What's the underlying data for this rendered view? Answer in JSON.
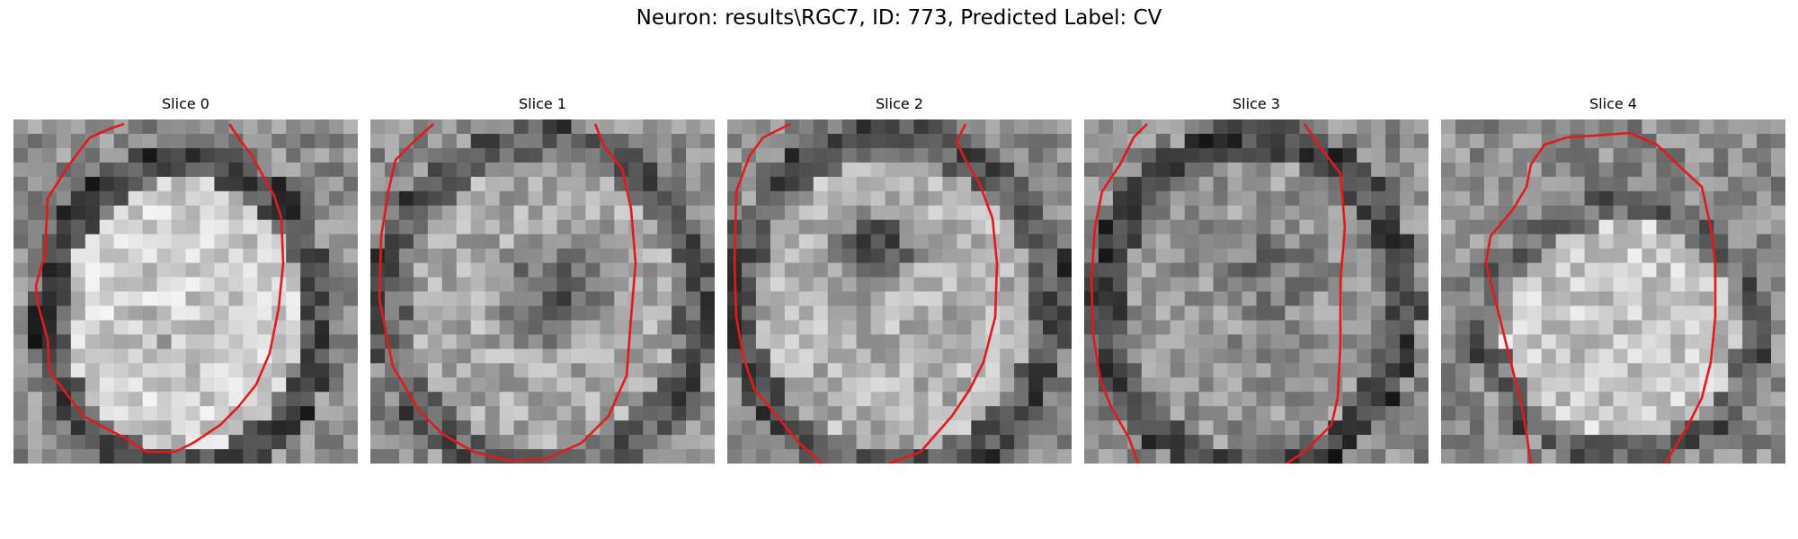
{
  "figure": {
    "title": "Neuron: results\\RGC7, ID: 773, Predicted Label: CV"
  },
  "panels": [
    {
      "title": "Slice 0"
    },
    {
      "title": "Slice 1"
    },
    {
      "title": "Slice 2"
    },
    {
      "title": "Slice 3"
    },
    {
      "title": "Slice 4"
    }
  ],
  "contour_color": "#e31a1c",
  "colormap": "gray"
}
